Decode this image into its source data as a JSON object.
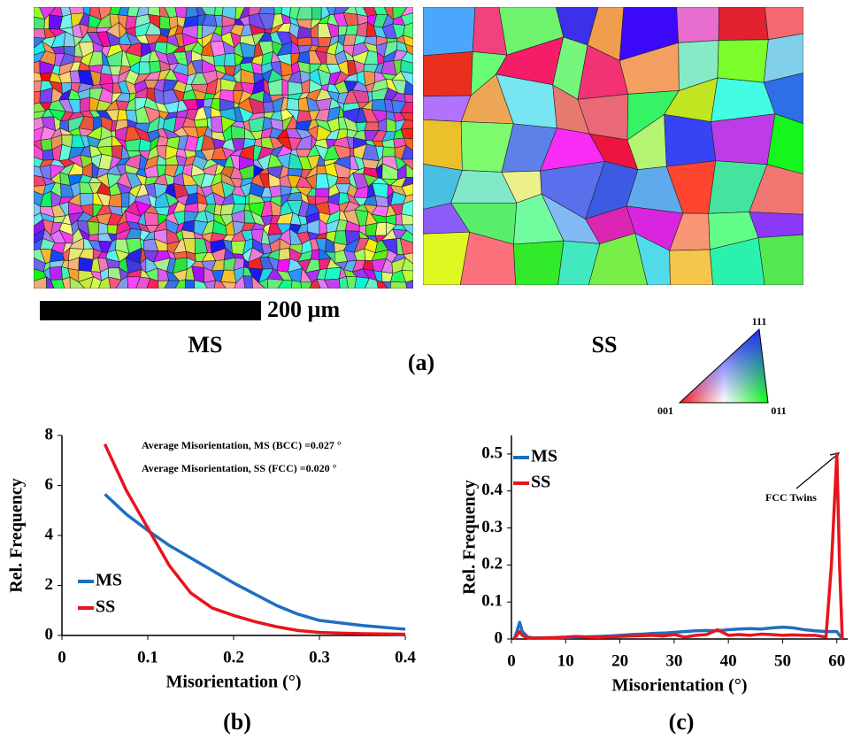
{
  "figure": {
    "scale_bar": "200 µm",
    "map_labels": [
      "MS",
      "SS"
    ],
    "panel_a": "(a)",
    "triangle": {
      "top": "111",
      "left": "001",
      "right": "011"
    },
    "panel_b": "(b)",
    "panel_c": "(c)"
  },
  "chart_data": [
    {
      "type": "line",
      "xlabel": "Misorientation (°)",
      "ylabel": "Rel. Frequency",
      "annotations": [
        "Average Misorientation, MS (BCC) =0.027 °",
        "Average Misorientation,  SS  (FCC) =0.020 °"
      ],
      "x": [
        0.05,
        0.075,
        0.1,
        0.125,
        0.15,
        0.175,
        0.2,
        0.225,
        0.25,
        0.275,
        0.3,
        0.35,
        0.4
      ],
      "series": [
        {
          "name": "MS",
          "color": "#1e6fc0",
          "values": [
            5.65,
            4.85,
            4.2,
            3.6,
            3.1,
            2.6,
            2.1,
            1.65,
            1.2,
            0.85,
            0.6,
            0.4,
            0.25
          ]
        },
        {
          "name": "SS",
          "color": "#e8141c",
          "values": [
            7.65,
            5.8,
            4.3,
            2.8,
            1.7,
            1.1,
            0.8,
            0.55,
            0.35,
            0.2,
            0.12,
            0.07,
            0.05
          ]
        }
      ],
      "xlim": [
        0,
        0.4
      ],
      "ylim": [
        0,
        8
      ],
      "xticks": [
        0,
        0.1,
        0.2,
        0.3,
        0.4
      ],
      "yticks": [
        0,
        2,
        4,
        6,
        8
      ],
      "legend": "lower left"
    },
    {
      "type": "line",
      "xlabel": "Misorientation (°)",
      "ylabel": "Rel. Frequency",
      "annotations": [
        "FCC Twins"
      ],
      "x": [
        0.5,
        1,
        1.5,
        2,
        3,
        4,
        6,
        8,
        10,
        12,
        14,
        16,
        18,
        20,
        22,
        24,
        26,
        28,
        30,
        32,
        34,
        36,
        38,
        40,
        42,
        44,
        46,
        48,
        50,
        52,
        54,
        56,
        58,
        59,
        60,
        60.5,
        61
      ],
      "series": [
        {
          "name": "MS",
          "color": "#1e6fc0",
          "values": [
            0,
            0.02,
            0.045,
            0.02,
            0.005,
            0.003,
            0.003,
            0.003,
            0.004,
            0.005,
            0.006,
            0.007,
            0.008,
            0.01,
            0.012,
            0.013,
            0.015,
            0.016,
            0.018,
            0.02,
            0.022,
            0.023,
            0.022,
            0.025,
            0.027,
            0.028,
            0.027,
            0.03,
            0.032,
            0.03,
            0.025,
            0.022,
            0.02,
            0.02,
            0.02,
            0.01,
            0
          ]
        },
        {
          "name": "SS",
          "color": "#e8141c",
          "values": [
            0,
            0.01,
            0.02,
            0.01,
            0.003,
            0.002,
            0.003,
            0.004,
            0.005,
            0.007,
            0.005,
            0.004,
            0.006,
            0.007,
            0.008,
            0.009,
            0.01,
            0.008,
            0.012,
            0.005,
            0.01,
            0.012,
            0.025,
            0.01,
            0.012,
            0.01,
            0.013,
            0.012,
            0.01,
            0.011,
            0.01,
            0.01,
            0.005,
            0.2,
            0.5,
            0.2,
            0
          ]
        }
      ],
      "xlim": [
        0,
        62
      ],
      "ylim": [
        0,
        0.55
      ],
      "xticks": [
        0,
        10,
        20,
        30,
        40,
        50,
        60
      ],
      "yticks": [
        0,
        0.1,
        0.2,
        0.3,
        0.4,
        0.5
      ],
      "legend": "upper left"
    }
  ]
}
